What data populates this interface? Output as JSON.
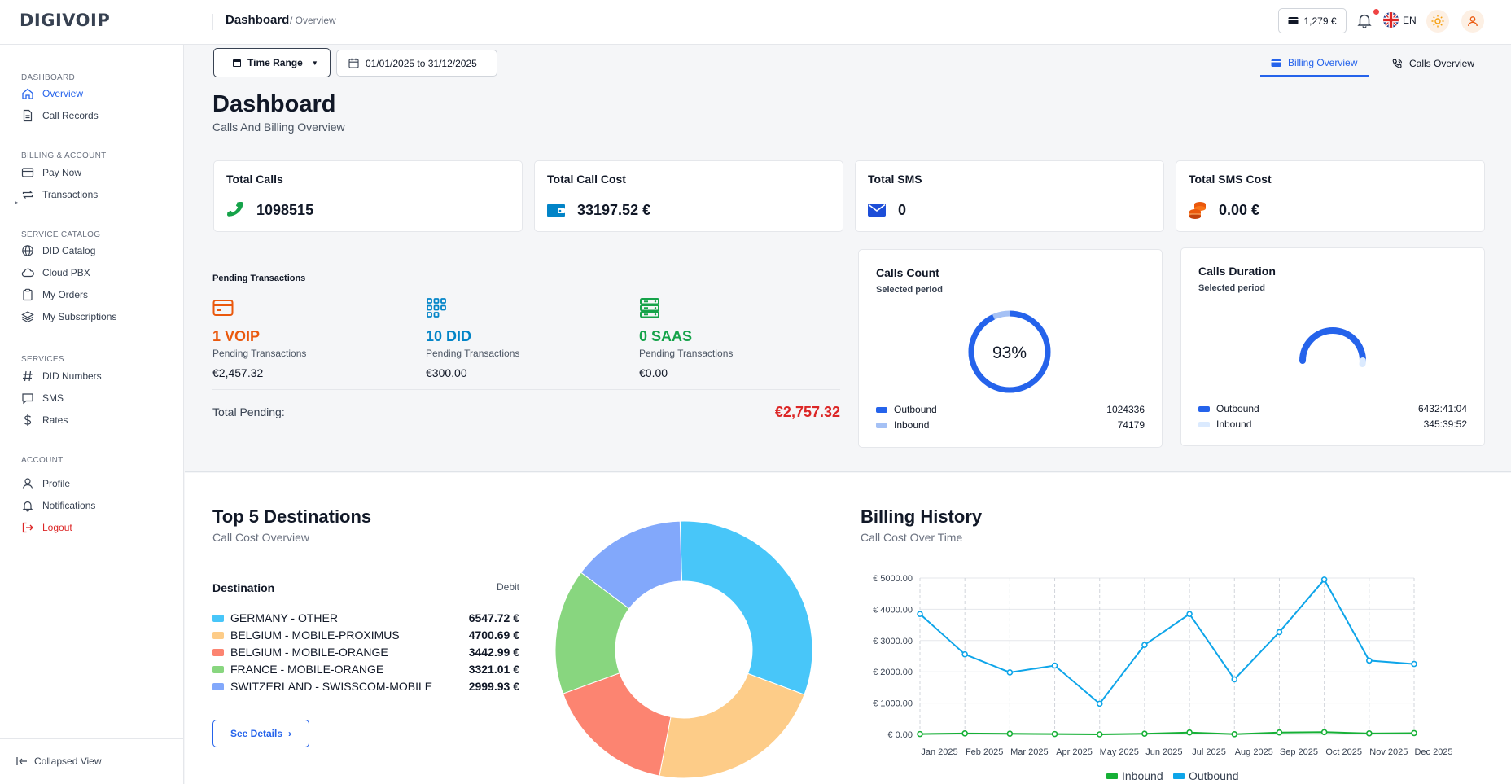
{
  "header": {
    "logo": "DIGIVOIP",
    "title": "Dashboard",
    "subtitle": "/ Overview",
    "balance": "1,279 €",
    "language": "EN"
  },
  "sidebar": {
    "sections": [
      {
        "title": "DASHBOARD",
        "items": [
          {
            "label": "Overview",
            "icon": "home-icon",
            "active": true
          },
          {
            "label": "Call Records",
            "icon": "document-icon"
          }
        ]
      },
      {
        "title": "BILLING & ACCOUNT",
        "items": [
          {
            "label": "Pay Now",
            "icon": "card-icon"
          },
          {
            "label": "Transactions",
            "icon": "repeat-icon"
          }
        ]
      },
      {
        "title": "SERVICE CATALOG",
        "items": [
          {
            "label": "DID Catalog",
            "icon": "globe-icon"
          },
          {
            "label": "Cloud PBX",
            "icon": "cloud-icon"
          },
          {
            "label": "My Orders",
            "icon": "clipboard-icon"
          },
          {
            "label": "My Subscriptions",
            "icon": "layers-icon"
          }
        ]
      },
      {
        "title": "SERVICES",
        "items": [
          {
            "label": "DID Numbers",
            "icon": "hash-icon"
          },
          {
            "label": "SMS",
            "icon": "message-icon"
          },
          {
            "label": "Rates",
            "icon": "dollar-icon"
          }
        ]
      },
      {
        "title": "ACCOUNT",
        "items": [
          {
            "label": "Profile",
            "icon": "user-icon"
          },
          {
            "label": "Notifications",
            "icon": "bell-icon"
          },
          {
            "label": "Logout",
            "icon": "logout-icon"
          }
        ]
      }
    ],
    "collapsed_view": "Collapsed View"
  },
  "toolbar": {
    "time_range": "Time Range",
    "date_range": "01/01/2025 to 31/12/2025",
    "tabs": [
      {
        "label": "Billing Overview",
        "active": true
      },
      {
        "label": "Calls Overview",
        "active": false
      }
    ]
  },
  "page": {
    "title": "Dashboard",
    "subtitle": "Calls And Billing Overview"
  },
  "stats": [
    {
      "label": "Total Calls",
      "value": "1098515",
      "icon": "phone-icon",
      "color": "#16a34a"
    },
    {
      "label": "Total Call Cost",
      "value": "33197.52 €",
      "icon": "wallet-icon",
      "color": "#0284c7"
    },
    {
      "label": "Total SMS",
      "value": "0",
      "icon": "envelope-icon",
      "color": "#1d4ed8"
    },
    {
      "label": "Total SMS Cost",
      "value": "0.00 €",
      "icon": "coins-icon",
      "color": "#ea580c"
    }
  ],
  "pending": {
    "title": "Pending Transactions",
    "items": [
      {
        "value": "1 VOIP",
        "label": "Pending Transactions",
        "amount": "€2,457.32",
        "color": "#ea580c",
        "icon": "card-icon"
      },
      {
        "value": "10 DID",
        "label": "Pending Transactions",
        "amount": "€300.00",
        "color": "#0284c7",
        "icon": "grid-icon"
      },
      {
        "value": "0 SAAS",
        "label": "Pending Transactions",
        "amount": "€0.00",
        "color": "#16a34a",
        "icon": "server-icon"
      }
    ],
    "total_label": "Total Pending:",
    "total_value": "€2,757.32"
  },
  "calls_count": {
    "title": "Calls Count",
    "subtitle": "Selected period",
    "percent_label": "93%",
    "percent": 0.93,
    "legend": [
      {
        "label": "Outbound",
        "value": "1024336",
        "color": "#2563eb"
      },
      {
        "label": "Inbound",
        "value": "74179",
        "color": "#a5c1f5"
      }
    ]
  },
  "calls_duration": {
    "title": "Calls Duration",
    "subtitle": "Selected period",
    "legend": [
      {
        "label": "Outbound",
        "value": "6432:41:04",
        "color": "#2563eb"
      },
      {
        "label": "Inbound",
        "value": "345:39:52",
        "color": "#dbeafe"
      }
    ]
  },
  "destinations": {
    "title": "Top 5 Destinations",
    "subtitle": "Call Cost Overview",
    "col_destination": "Destination",
    "col_debit": "Debit",
    "button": "See Details"
  },
  "billing": {
    "title": "Billing History",
    "subtitle": "Call Cost Over Time"
  },
  "chart_data": [
    {
      "type": "pie",
      "categories": [
        "GERMANY - OTHER",
        "BELGIUM - MOBILE-PROXIMUS",
        "BELGIUM - MOBILE-ORANGE",
        "FRANCE - MOBILE-ORANGE",
        "SWITZERLAND - SWISSCOM-MOBILE"
      ],
      "values": [
        6547.72,
        4700.69,
        3442.99,
        3321.01,
        2999.93
      ],
      "display_values": [
        "6547.72 €",
        "4700.69 €",
        "3442.99 €",
        "3321.01 €",
        "2999.93 €"
      ],
      "colors": [
        "#48c6f9",
        "#fdcc88",
        "#fc8471",
        "#88d67f",
        "#82a8fb"
      ],
      "donut": true
    },
    {
      "type": "line",
      "categories": [
        "Jan 2025",
        "Feb 2025",
        "Mar 2025",
        "Apr 2025",
        "May 2025",
        "Jun 2025",
        "Jul 2025",
        "Aug 2025",
        "Sep 2025",
        "Oct 2025",
        "Nov 2025",
        "Dec 2025"
      ],
      "series": [
        {
          "name": "Inbound",
          "color": "#16b036",
          "values": [
            10,
            30,
            20,
            10,
            0,
            20,
            60,
            5,
            60,
            70,
            30,
            40
          ]
        },
        {
          "name": "Outbound",
          "color": "#0ea5e9",
          "values": [
            3850,
            2560,
            1980,
            2200,
            980,
            2860,
            3850,
            1760,
            3270,
            4950,
            2360,
            2250
          ]
        }
      ],
      "yticks": [
        "€ 0.00",
        "€ 1000.00",
        "€ 2000.00",
        "€ 3000.00",
        "€ 4000.00",
        "€ 5000.00"
      ],
      "ylim": [
        0,
        5000
      ],
      "grid": true,
      "legend": "bottom"
    }
  ]
}
